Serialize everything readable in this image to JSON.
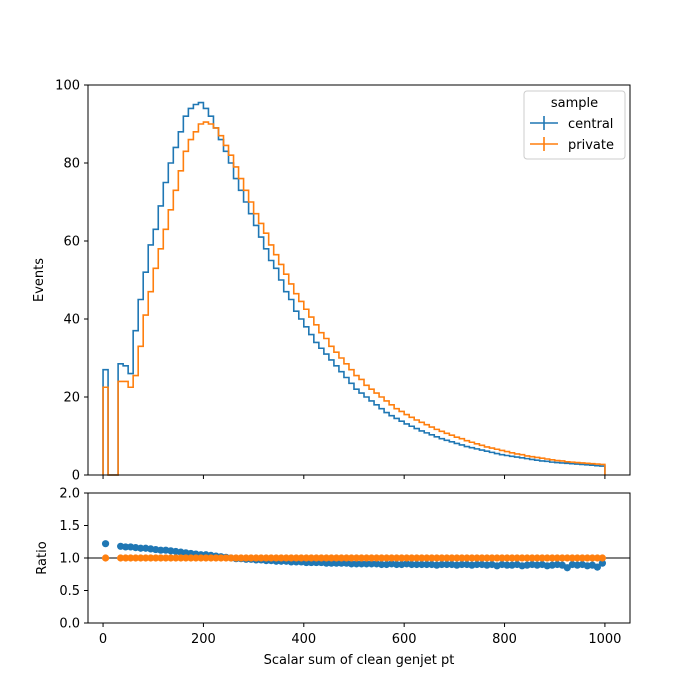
{
  "chart_data": {
    "type": "line",
    "xlabel": "Scalar sum of clean genjet pt",
    "main": {
      "ylabel": "Events",
      "ylim": [
        0,
        100
      ],
      "yticks": [
        "0",
        "20",
        "40",
        "60",
        "80",
        "100"
      ]
    },
    "ratio": {
      "ylabel": "Ratio",
      "ylim": [
        0.0,
        2.0
      ],
      "yticks": [
        "0.0",
        "0.5",
        "1.0",
        "1.5",
        "2.0"
      ],
      "reference_line": 1.0
    },
    "xlim": [
      -30,
      1050
    ],
    "xticks": [
      "0",
      "200",
      "400",
      "600",
      "800",
      "1000"
    ],
    "bin_width": 10,
    "legend": {
      "title": "sample",
      "position": "top-right"
    },
    "series": [
      {
        "name": "central",
        "color": "#1f77b4",
        "values": [
          27,
          0,
          0,
          28.5,
          28,
          26,
          37,
          45,
          52,
          59,
          63,
          69,
          75,
          80,
          84,
          88,
          92,
          94,
          95,
          95.5,
          94,
          92,
          89,
          86,
          83,
          80,
          76,
          73,
          70,
          67,
          64,
          61,
          58,
          55,
          53,
          50,
          47,
          45,
          42,
          40,
          38,
          36,
          34,
          32.5,
          31,
          29.5,
          28,
          26.5,
          25,
          23.5,
          22,
          21,
          20,
          19,
          18,
          17,
          16,
          15.2,
          14.5,
          13.8,
          13.1,
          12.5,
          11.9,
          11.3,
          10.8,
          10.3,
          9.8,
          9.3,
          8.9,
          8.5,
          8.1,
          7.7,
          7.3,
          7,
          6.7,
          6.4,
          6.1,
          5.8,
          5.5,
          5.2,
          5,
          4.8,
          4.6,
          4.4,
          4.2,
          4.0,
          3.8,
          3.6,
          3.5,
          3.3,
          3.2,
          3.1,
          3.0,
          2.9,
          2.8,
          2.7,
          2.6,
          2.5,
          2.4,
          2.3
        ],
        "ratio": [
          1.22,
          0,
          0,
          1.18,
          1.17,
          1.17,
          1.16,
          1.15,
          1.15,
          1.14,
          1.13,
          1.12,
          1.12,
          1.11,
          1.1,
          1.09,
          1.08,
          1.07,
          1.06,
          1.05,
          1.05,
          1.04,
          1.03,
          1.02,
          1.01,
          1.0,
          0.99,
          0.99,
          0.98,
          0.98,
          0.97,
          0.97,
          0.96,
          0.96,
          0.95,
          0.95,
          0.95,
          0.94,
          0.94,
          0.94,
          0.93,
          0.93,
          0.93,
          0.93,
          0.92,
          0.92,
          0.92,
          0.92,
          0.92,
          0.91,
          0.91,
          0.91,
          0.91,
          0.91,
          0.91,
          0.9,
          0.9,
          0.91,
          0.9,
          0.9,
          0.91,
          0.9,
          0.9,
          0.9,
          0.9,
          0.9,
          0.89,
          0.9,
          0.9,
          0.9,
          0.89,
          0.9,
          0.9,
          0.89,
          0.9,
          0.9,
          0.89,
          0.9,
          0.88,
          0.9,
          0.89,
          0.89,
          0.9,
          0.88,
          0.89,
          0.9,
          0.89,
          0.9,
          0.88,
          0.89,
          0.9,
          0.89,
          0.85,
          0.9,
          0.89,
          0.9,
          0.88,
          0.89,
          0.86,
          0.92
        ]
      },
      {
        "name": "private",
        "color": "#ff7f0e",
        "values": [
          22.5,
          0,
          0,
          24,
          24,
          22.5,
          25.5,
          33,
          41,
          47,
          53,
          58,
          63,
          68,
          73,
          78,
          83,
          86,
          88,
          90,
          90.5,
          90,
          89,
          87,
          84.5,
          82,
          79,
          76,
          73,
          70,
          67,
          64.5,
          62,
          59,
          56.5,
          54,
          51.5,
          49,
          46.5,
          44.5,
          42.5,
          40.5,
          38.5,
          36.5,
          35,
          33,
          31.5,
          30,
          28.5,
          27,
          25.5,
          24.5,
          23,
          22,
          21,
          20,
          19,
          18,
          17,
          16.3,
          15.5,
          14.8,
          14.1,
          13.5,
          12.9,
          12.3,
          11.7,
          11.2,
          10.7,
          10.2,
          9.7,
          9.3,
          8.8,
          8.4,
          8.0,
          7.6,
          7.2,
          6.9,
          6.6,
          6.3,
          6.0,
          5.7,
          5.4,
          5.2,
          4.9,
          4.7,
          4.5,
          4.3,
          4.1,
          3.9,
          3.7,
          3.6,
          3.4,
          3.3,
          3.2,
          3.1,
          3.0,
          2.9,
          2.8,
          2.7
        ],
        "ratio": [
          1.0,
          0,
          0,
          1.0,
          1.0,
          1.0,
          1.0,
          1.0,
          1.0,
          1.0,
          1.0,
          1.0,
          1.0,
          1.0,
          1.0,
          1.0,
          1.0,
          1.0,
          1.0,
          1.0,
          1.0,
          1.0,
          1.0,
          1.0,
          1.0,
          1.0,
          1.0,
          1.0,
          1.0,
          1.0,
          1.0,
          1.0,
          1.0,
          1.0,
          1.0,
          1.0,
          1.0,
          1.0,
          1.0,
          1.0,
          1.0,
          1.0,
          1.0,
          1.0,
          1.0,
          1.0,
          1.0,
          1.0,
          1.0,
          1.0,
          1.0,
          1.0,
          1.0,
          1.0,
          1.0,
          1.0,
          1.0,
          1.0,
          1.0,
          1.0,
          1.0,
          1.0,
          1.0,
          1.0,
          1.0,
          1.0,
          1.0,
          1.0,
          1.0,
          1.0,
          1.0,
          1.0,
          1.0,
          1.0,
          1.0,
          1.0,
          1.0,
          1.0,
          1.0,
          1.0,
          1.0,
          1.0,
          1.0,
          1.0,
          1.0,
          1.0,
          1.0,
          1.0,
          1.0,
          1.0,
          1.0,
          1.0,
          1.0,
          1.0,
          1.0,
          1.0,
          1.0,
          1.0,
          1.0,
          1.0
        ]
      }
    ]
  }
}
